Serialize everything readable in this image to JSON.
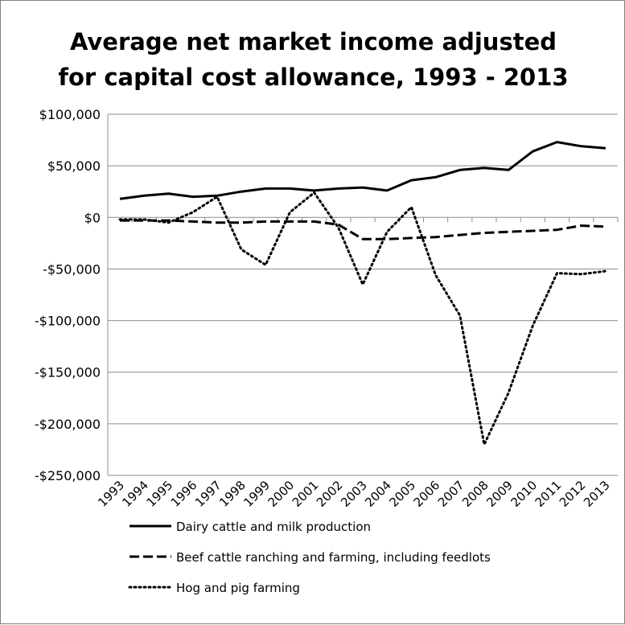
{
  "chart_data": {
    "type": "line",
    "title": [
      "Average net market income adjusted",
      "for capital cost allowance, 1993 - 2013"
    ],
    "x": [
      "1993",
      "1994",
      "1995",
      "1996",
      "1997",
      "1998",
      "1999",
      "2000",
      "2001",
      "2002",
      "2003",
      "2004",
      "2005",
      "2006",
      "2007",
      "2008",
      "2009",
      "2010",
      "2011",
      "2012",
      "2013"
    ],
    "y_ticks": [
      100000,
      50000,
      0,
      -50000,
      -100000,
      -150000,
      -200000,
      -250000
    ],
    "y_tick_labels": [
      "$100,000",
      "$50,000",
      "$0",
      "-$50,000",
      "-$100,000",
      "-$150,000",
      "-$200,000",
      "-$250,000"
    ],
    "ylim": [
      -250000,
      100000
    ],
    "grid": "horizontal",
    "legend_position": "bottom",
    "series": [
      {
        "name": "Dairy cattle and milk production",
        "style": "solid",
        "color": "#000000",
        "values": [
          18000,
          21000,
          23000,
          20000,
          21000,
          25000,
          28000,
          28000,
          26000,
          28000,
          29000,
          26000,
          36000,
          39000,
          46000,
          48000,
          46000,
          64000,
          73000,
          69000,
          67000
        ]
      },
      {
        "name": "Beef cattle ranching and farming, including feedlots",
        "style": "dashed",
        "color": "#000000",
        "values": [
          -3000,
          -3000,
          -3000,
          -4000,
          -5000,
          -5000,
          -4000,
          -4000,
          -4000,
          -7000,
          -21000,
          -21000,
          -20000,
          -19000,
          -17000,
          -15000,
          -14000,
          -13000,
          -12000,
          -8000,
          -9000
        ]
      },
      {
        "name": "Hog and pig farming",
        "style": "dotted",
        "color": "#000000",
        "values": [
          -2000,
          -2000,
          -5000,
          5000,
          20000,
          -31000,
          -46000,
          5000,
          24000,
          -10000,
          -65000,
          -14000,
          10000,
          -56000,
          -95000,
          -220000,
          -170000,
          -105000,
          -54000,
          -55000,
          -52000
        ]
      }
    ]
  }
}
